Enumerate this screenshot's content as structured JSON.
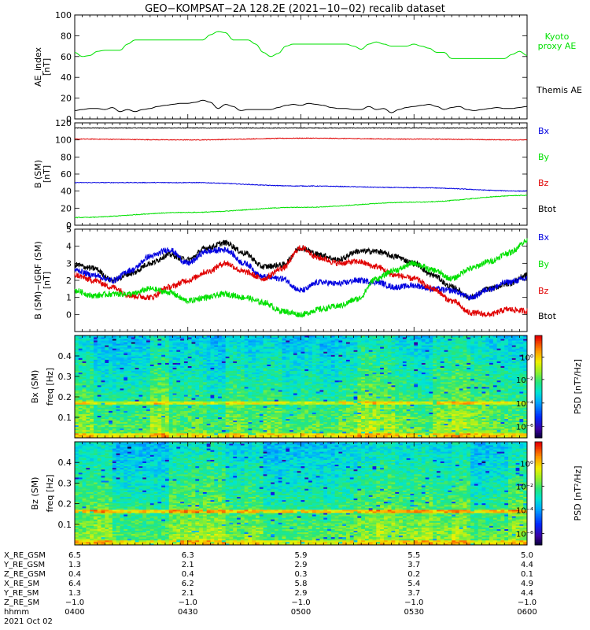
{
  "title": "GEO−KOMPSAT−2A 128.2E (2021−10−02) recalib dataset",
  "colors": {
    "black": "#000000",
    "green": "#00e000",
    "blue": "#0000e0",
    "red": "#e00000"
  },
  "chart_data": [
    {
      "type": "line",
      "panel": "ae",
      "ylabel": "AE_index\n[nT]",
      "ylim": [
        0,
        100
      ],
      "yticks": [
        "0",
        "20",
        "40",
        "60",
        "80",
        "100"
      ],
      "x_range": [
        "04:00",
        "06:00"
      ],
      "series": [
        {
          "name": "Kyoto\nproxy AE",
          "color": "green",
          "x": [
            0,
            2,
            4,
            6,
            8,
            10,
            12,
            14,
            16,
            18,
            20,
            22,
            24,
            26,
            28,
            30,
            32,
            34,
            36,
            38,
            40,
            42,
            44,
            46,
            48,
            50,
            52,
            54,
            56,
            58,
            60,
            62,
            64,
            66,
            68,
            70,
            72,
            74,
            76,
            78,
            80,
            82,
            84,
            86,
            88,
            90,
            92,
            94,
            96,
            98,
            100,
            102,
            104,
            106,
            108,
            110,
            112,
            114,
            116,
            118,
            120
          ],
          "values": [
            64,
            60,
            61,
            65,
            66,
            66,
            66,
            72,
            76,
            76,
            76,
            76,
            76,
            76,
            76,
            76,
            76,
            76,
            81,
            84,
            83,
            76,
            76,
            76,
            72,
            64,
            60,
            63,
            70,
            72,
            72,
            72,
            72,
            72,
            72,
            72,
            72,
            70,
            67,
            72,
            74,
            72,
            70,
            70,
            70,
            72,
            70,
            68,
            64,
            64,
            58,
            58,
            58,
            58,
            58,
            58,
            58,
            58,
            62,
            65,
            61
          ]
        },
        {
          "name": "Themis AE",
          "color": "black",
          "x": [
            0,
            2,
            4,
            6,
            8,
            10,
            12,
            14,
            16,
            18,
            20,
            22,
            24,
            26,
            28,
            30,
            32,
            34,
            36,
            38,
            40,
            42,
            44,
            46,
            48,
            50,
            52,
            54,
            56,
            58,
            60,
            62,
            64,
            66,
            68,
            70,
            72,
            74,
            76,
            78,
            80,
            82,
            84,
            86,
            88,
            90,
            92,
            94,
            96,
            98,
            100,
            102,
            104,
            106,
            108,
            110,
            112,
            114,
            116,
            118,
            120
          ],
          "values": [
            8,
            9,
            10,
            10,
            9,
            11,
            7,
            9,
            7,
            9,
            10,
            12,
            13,
            14,
            15,
            15,
            16,
            18,
            16,
            10,
            14,
            12,
            8,
            9,
            9,
            9,
            9,
            11,
            13,
            14,
            13,
            15,
            14,
            13,
            11,
            10,
            10,
            9,
            9,
            12,
            9,
            10,
            6,
            9,
            11,
            12,
            13,
            14,
            12,
            9,
            11,
            12,
            9,
            8,
            9,
            10,
            11,
            10,
            10,
            11,
            12
          ]
        }
      ]
    },
    {
      "type": "line",
      "panel": "b_sm",
      "ylabel": "B (SM)\n[nT]",
      "ylim": [
        0,
        120
      ],
      "yticks": [
        "0",
        "20",
        "40",
        "60",
        "80",
        "100",
        "120"
      ],
      "x_range": [
        "04:00",
        "06:00"
      ],
      "series": [
        {
          "name": "Btot",
          "color": "black",
          "x": [
            0,
            30,
            60,
            90,
            120
          ],
          "values": [
            114,
            114,
            114,
            114,
            114
          ]
        },
        {
          "name": "Bz",
          "color": "red",
          "x": [
            0,
            30,
            60,
            90,
            120
          ],
          "values": [
            101,
            100,
            102,
            101,
            100
          ]
        },
        {
          "name": "Bx",
          "color": "blue",
          "x": [
            0,
            30,
            60,
            90,
            120
          ],
          "values": [
            50,
            50,
            46,
            44,
            40
          ]
        },
        {
          "name": "By",
          "color": "green",
          "x": [
            0,
            30,
            60,
            90,
            120
          ],
          "values": [
            9,
            15,
            21,
            27,
            35
          ]
        }
      ],
      "legend": [
        "Bx",
        "By",
        "Bz",
        "Btot"
      ]
    },
    {
      "type": "line",
      "panel": "b_minus_igrf",
      "ylabel": "B (SM)−IGRF (SM)\n[nT]",
      "ylim": [
        -1,
        5
      ],
      "yticks": [
        "0",
        "1",
        "2",
        "3",
        "4",
        "5"
      ],
      "x_range": [
        "04:00",
        "06:00"
      ],
      "series": [
        {
          "name": "Btot",
          "color": "black",
          "x": [
            0,
            5,
            10,
            15,
            20,
            25,
            30,
            35,
            40,
            45,
            50,
            55,
            60,
            65,
            70,
            75,
            80,
            85,
            90,
            95,
            100,
            105,
            110,
            115,
            120
          ],
          "values": [
            2.9,
            2.7,
            2.0,
            2.4,
            3.0,
            3.5,
            3.2,
            3.9,
            4.2,
            3.6,
            2.8,
            2.9,
            3.9,
            3.5,
            3.2,
            3.7,
            3.7,
            3.4,
            3.0,
            2.3,
            1.6,
            1.0,
            1.5,
            1.8,
            2.3
          ]
        },
        {
          "name": "Bx",
          "color": "blue",
          "x": [
            0,
            5,
            10,
            15,
            20,
            25,
            30,
            35,
            40,
            45,
            50,
            55,
            60,
            65,
            70,
            75,
            80,
            85,
            90,
            95,
            100,
            105,
            110,
            115,
            120
          ],
          "values": [
            2.6,
            2.3,
            2.0,
            2.6,
            3.4,
            3.8,
            3.0,
            3.7,
            3.8,
            3.0,
            2.2,
            2.1,
            1.4,
            1.9,
            1.8,
            2.0,
            1.9,
            1.6,
            1.7,
            1.5,
            1.4,
            1.0,
            1.5,
            1.9,
            2.1
          ]
        },
        {
          "name": "Bz",
          "color": "red",
          "x": [
            0,
            5,
            10,
            15,
            20,
            25,
            30,
            35,
            40,
            45,
            50,
            55,
            60,
            65,
            70,
            75,
            80,
            85,
            90,
            95,
            100,
            105,
            110,
            115,
            120
          ],
          "values": [
            2.3,
            2.0,
            1.6,
            1.1,
            1.0,
            1.6,
            2.0,
            2.5,
            3.0,
            2.5,
            2.1,
            2.7,
            3.9,
            3.3,
            3.0,
            3.1,
            2.8,
            2.3,
            2.1,
            1.5,
            0.8,
            0.1,
            0.0,
            0.3,
            0.2
          ]
        },
        {
          "name": "By",
          "color": "green",
          "x": [
            0,
            5,
            10,
            15,
            20,
            25,
            30,
            35,
            40,
            45,
            50,
            55,
            60,
            65,
            70,
            75,
            80,
            85,
            90,
            95,
            100,
            105,
            110,
            115,
            120
          ],
          "values": [
            1.4,
            1.1,
            1.2,
            1.2,
            1.5,
            1.3,
            0.8,
            1.0,
            1.2,
            1.0,
            0.7,
            0.2,
            0.0,
            0.3,
            0.5,
            0.9,
            2.1,
            2.6,
            3.0,
            2.6,
            2.1,
            2.7,
            3.1,
            3.6,
            4.3
          ]
        }
      ],
      "legend": [
        "Bx",
        "By",
        "Bz",
        "Btot"
      ]
    },
    {
      "type": "heatmap",
      "panel": "bx_spec",
      "ylabel": "Bx (SM)\nfreq [Hz]",
      "ylim": [
        0,
        0.5
      ],
      "yticks": [
        "0.1",
        "0.2",
        "0.3",
        "0.4"
      ],
      "colorbar": {
        "label": "PSD [nT²/Hz]",
        "ticks": [
          "10⁰",
          "10⁻²",
          "10⁻⁴",
          "10⁻⁶"
        ]
      }
    },
    {
      "type": "heatmap",
      "panel": "bz_spec",
      "ylabel": "Bz (SM)\nfreq [Hz]",
      "ylim": [
        0,
        0.5
      ],
      "yticks": [
        "0.1",
        "0.2",
        "0.3",
        "0.4"
      ],
      "colorbar": {
        "label": "PSD [nT²/Hz]",
        "ticks": [
          "10⁰",
          "10⁻²",
          "10⁻⁴",
          "10⁻⁶"
        ]
      }
    }
  ],
  "ephemeris": {
    "row_labels": [
      "X_RE_GSM",
      "Y_RE_GSM",
      "Z_RE_GSM",
      "X_RE_SM",
      "Y_RE_SM",
      "Z_RE_SM",
      "hhmm",
      "2021 Oct 02"
    ],
    "columns": [
      [
        "6.5",
        "1.3",
        "0.4",
        "6.4",
        "1.3",
        "−1.0",
        "0400"
      ],
      [
        "6.3",
        "2.1",
        "0.4",
        "6.2",
        "2.1",
        "−1.0",
        "0430"
      ],
      [
        "5.9",
        "2.9",
        "0.3",
        "5.8",
        "2.9",
        "−1.0",
        "0500"
      ],
      [
        "5.5",
        "3.7",
        "0.2",
        "5.4",
        "3.7",
        "−1.0",
        "0530"
      ],
      [
        "5.0",
        "4.4",
        "0.1",
        "4.9",
        "4.4",
        "−1.0",
        "0600"
      ]
    ]
  }
}
